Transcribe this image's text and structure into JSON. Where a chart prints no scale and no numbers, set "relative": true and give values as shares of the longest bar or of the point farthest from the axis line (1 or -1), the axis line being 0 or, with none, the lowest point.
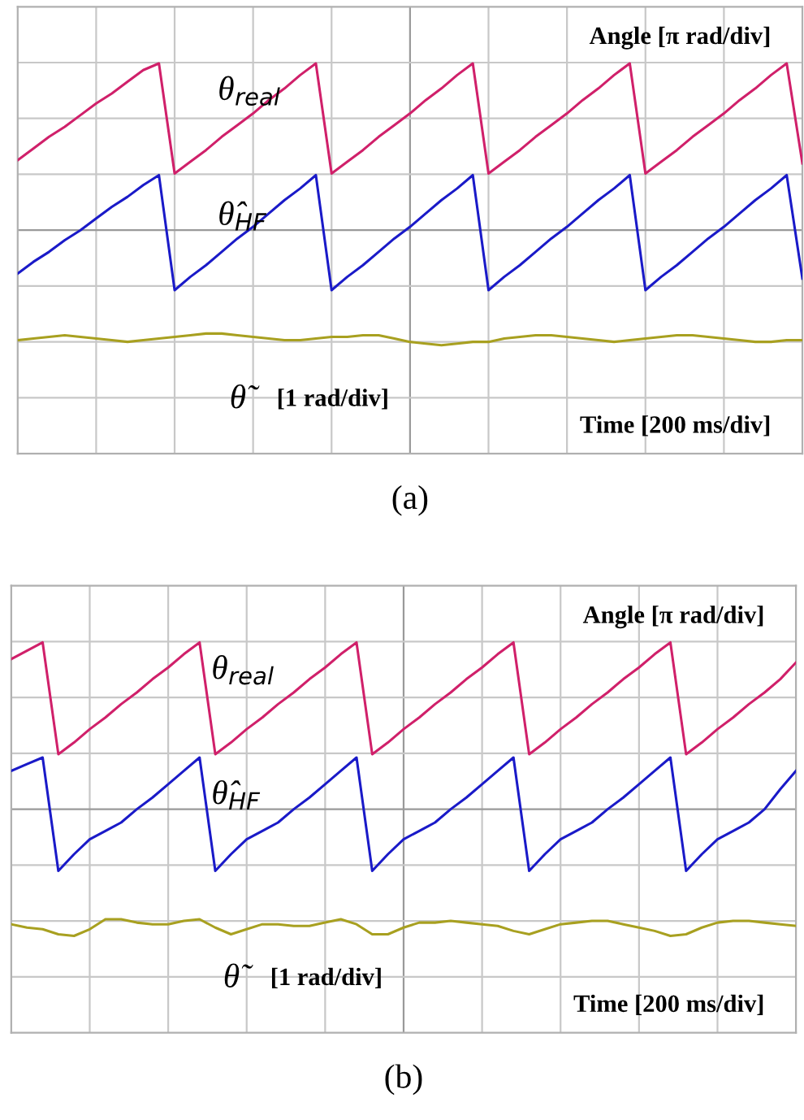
{
  "chart_data": [
    {
      "type": "line",
      "xlabel": "(a)",
      "relative": true,
      "tick_labels": false,
      "grid": true,
      "legend": false,
      "line_style": "solid",
      "marker": "none",
      "categories": [
        null,
        null,
        null,
        null,
        null,
        null,
        null,
        null,
        null,
        null,
        null,
        null,
        null,
        null,
        null,
        null,
        null,
        null,
        null,
        null,
        null,
        null,
        null,
        null,
        null,
        null,
        null,
        null,
        null,
        null,
        null,
        null,
        null,
        null,
        null,
        null,
        null,
        null,
        null,
        null,
        null,
        null,
        null,
        null,
        null,
        null,
        null,
        null,
        null,
        null,
        null
      ],
      "annotations": [
        "Angle [π rad/div]",
        "[1 rad/div]",
        "Time [200 ms/div]"
      ],
      "series": [
        {
          "name": "θ$_{real}$",
          "color": "#d0206a",
          "values": [
            0.42,
            0.49,
            0.56,
            0.62,
            0.69,
            0.76,
            0.82,
            0.89,
            0.96,
            1,
            0.34,
            0.41,
            0.48,
            0.56,
            0.63,
            0.7,
            0.78,
            0.85,
            0.93,
            1,
            0.34,
            0.41,
            0.48,
            0.56,
            0.63,
            0.7,
            0.78,
            0.85,
            0.93,
            1,
            0.34,
            0.41,
            0.48,
            0.56,
            0.63,
            0.7,
            0.78,
            0.85,
            0.93,
            1,
            0.34,
            0.41,
            0.48,
            0.56,
            0.63,
            0.7,
            0.78,
            0.85,
            0.93,
            1,
            0.4
          ]
        },
        {
          "name": "θ̂$_{HF}$",
          "color": "#1a1ac8",
          "values": [
            -0.26,
            -0.19,
            -0.13,
            -0.06,
            0.0,
            0.07,
            0.14,
            0.2,
            0.27,
            0.33,
            -0.36,
            -0.28,
            -0.21,
            -0.13,
            -0.05,
            0.02,
            0.1,
            0.18,
            0.25,
            0.33,
            -0.36,
            -0.28,
            -0.21,
            -0.13,
            -0.05,
            0.02,
            0.1,
            0.18,
            0.25,
            0.33,
            -0.36,
            -0.28,
            -0.21,
            -0.13,
            -0.05,
            0.02,
            0.1,
            0.18,
            0.25,
            0.33,
            -0.36,
            -0.28,
            -0.21,
            -0.13,
            -0.05,
            0.02,
            0.1,
            0.18,
            0.25,
            0.33,
            -0.29
          ]
        },
        {
          "name": "θ̃",
          "color": "#a8a020",
          "values": [
            -0.66,
            -0.65,
            -0.64,
            -0.63,
            -0.64,
            -0.65,
            -0.66,
            -0.67,
            -0.66,
            -0.65,
            -0.64,
            -0.63,
            -0.62,
            -0.62,
            -0.63,
            -0.64,
            -0.65,
            -0.66,
            -0.66,
            -0.65,
            -0.64,
            -0.64,
            -0.63,
            -0.63,
            -0.65,
            -0.67,
            -0.68,
            -0.69,
            -0.68,
            -0.67,
            -0.67,
            -0.65,
            -0.64,
            -0.63,
            -0.63,
            -0.64,
            -0.65,
            -0.66,
            -0.67,
            -0.66,
            -0.65,
            -0.64,
            -0.63,
            -0.63,
            -0.64,
            -0.65,
            -0.66,
            -0.67,
            -0.67,
            -0.66,
            -0.66
          ]
        }
      ]
    },
    {
      "type": "line",
      "xlabel": "(b)",
      "relative": true,
      "tick_labels": false,
      "grid": true,
      "legend": false,
      "line_style": "solid",
      "marker": "none",
      "categories": [
        null,
        null,
        null,
        null,
        null,
        null,
        null,
        null,
        null,
        null,
        null,
        null,
        null,
        null,
        null,
        null,
        null,
        null,
        null,
        null,
        null,
        null,
        null,
        null,
        null,
        null,
        null,
        null,
        null,
        null,
        null,
        null,
        null,
        null,
        null,
        null,
        null,
        null,
        null,
        null,
        null,
        null,
        null,
        null,
        null,
        null,
        null,
        null,
        null,
        null,
        null
      ],
      "annotations": [
        "Angle [π rad/div]",
        "[1 rad/div]",
        "Time [200 ms/div]"
      ],
      "series": [
        {
          "name": "θ$_{real}$",
          "color": "#d0206a",
          "values": [
            0.9,
            0.95,
            1,
            0.33,
            0.4,
            0.48,
            0.55,
            0.63,
            0.7,
            0.78,
            0.85,
            0.93,
            1,
            0.33,
            0.4,
            0.48,
            0.55,
            0.63,
            0.7,
            0.78,
            0.85,
            0.93,
            1,
            0.33,
            0.4,
            0.48,
            0.55,
            0.63,
            0.7,
            0.78,
            0.85,
            0.93,
            1,
            0.33,
            0.4,
            0.48,
            0.55,
            0.63,
            0.7,
            0.78,
            0.85,
            0.93,
            1,
            0.33,
            0.4,
            0.48,
            0.55,
            0.63,
            0.7,
            0.78,
            0.88
          ]
        },
        {
          "name": "θ̂$_{HF}$",
          "color": "#1a1ac8",
          "values": [
            0.23,
            0.27,
            0.31,
            -0.37,
            -0.27,
            -0.18,
            -0.13,
            -0.08,
            0.0,
            0.07,
            0.15,
            0.23,
            0.31,
            -0.37,
            -0.27,
            -0.18,
            -0.13,
            -0.08,
            0.0,
            0.07,
            0.15,
            0.23,
            0.31,
            -0.37,
            -0.27,
            -0.18,
            -0.13,
            -0.08,
            0.0,
            0.07,
            0.15,
            0.23,
            0.31,
            -0.37,
            -0.27,
            -0.18,
            -0.13,
            -0.08,
            0.0,
            0.07,
            0.15,
            0.23,
            0.31,
            -0.37,
            -0.27,
            -0.18,
            -0.13,
            -0.08,
            0.0,
            0.12,
            0.23
          ]
        },
        {
          "name": "θ̃",
          "color": "#a8a020",
          "values": [
            -0.69,
            -0.71,
            -0.72,
            -0.75,
            -0.76,
            -0.72,
            -0.66,
            -0.66,
            -0.68,
            -0.69,
            -0.69,
            -0.67,
            -0.66,
            -0.71,
            -0.75,
            -0.72,
            -0.69,
            -0.69,
            -0.7,
            -0.7,
            -0.68,
            -0.66,
            -0.69,
            -0.75,
            -0.75,
            -0.71,
            -0.68,
            -0.68,
            -0.67,
            -0.68,
            -0.69,
            -0.7,
            -0.73,
            -0.75,
            -0.72,
            -0.69,
            -0.68,
            -0.67,
            -0.67,
            -0.69,
            -0.71,
            -0.73,
            -0.76,
            -0.75,
            -0.71,
            -0.68,
            -0.67,
            -0.67,
            -0.68,
            -0.69,
            -0.7
          ]
        }
      ]
    }
  ]
}
